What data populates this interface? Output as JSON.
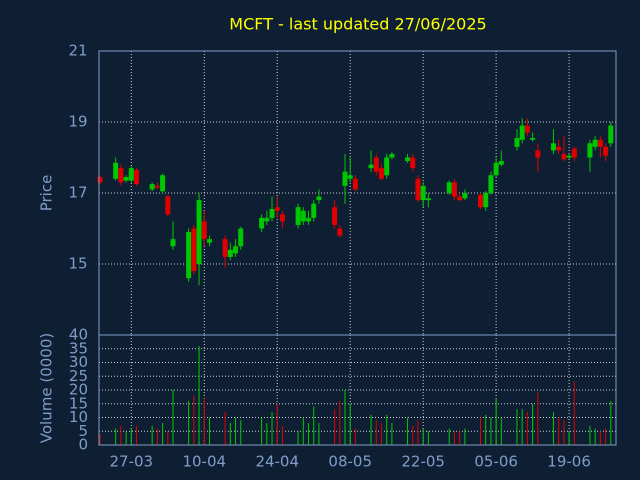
{
  "chart_data": {
    "type": "candlestick",
    "title": "MCFT - last updated 27/06/2025",
    "ylabel": "Price",
    "volume_label": "Volume (0000)",
    "x": [
      "21-03",
      "24-03",
      "25-03",
      "26-03",
      "27-03",
      "28-03",
      "31-03",
      "01-04",
      "02-04",
      "03-04",
      "04-04",
      "07-04",
      "08-04",
      "09-04",
      "10-04",
      "11-04",
      "14-04",
      "15-04",
      "16-04",
      "17-04",
      "21-04",
      "22-04",
      "23-04",
      "24-04",
      "25-04",
      "28-04",
      "29-04",
      "30-04",
      "01-05",
      "02-05",
      "05-05",
      "06-05",
      "07-05",
      "08-05",
      "09-05",
      "12-05",
      "13-05",
      "14-05",
      "15-05",
      "16-05",
      "19-05",
      "20-05",
      "21-05",
      "22-05",
      "23-05",
      "27-05",
      "28-05",
      "29-05",
      "30-05",
      "02-06",
      "03-06",
      "04-06",
      "05-06",
      "06-06",
      "09-06",
      "10-06",
      "11-06",
      "12-06",
      "13-06",
      "16-06",
      "17-06",
      "18-06",
      "19-06",
      "20-06",
      "23-06",
      "24-06",
      "25-06",
      "26-06",
      "27-06"
    ],
    "open": [
      17.45,
      17.4,
      17.7,
      17.35,
      17.35,
      17.65,
      17.1,
      17.2,
      17.05,
      16.9,
      15.5,
      14.6,
      16.0,
      15.0,
      16.2,
      15.6,
      15.7,
      15.2,
      15.3,
      15.5,
      16.0,
      16.2,
      16.3,
      16.6,
      16.4,
      16.1,
      16.2,
      16.2,
      16.3,
      16.8,
      16.6,
      16.0,
      17.2,
      17.4,
      17.4,
      17.7,
      18.0,
      17.7,
      17.5,
      18.0,
      17.9,
      18.0,
      17.4,
      16.8,
      16.8,
      17.0,
      17.3,
      16.9,
      16.85,
      16.95,
      16.6,
      17.0,
      17.5,
      17.8,
      18.3,
      18.5,
      18.9,
      18.5,
      18.2,
      18.2,
      18.3,
      18.1,
      18.0,
      18.25,
      18.0,
      18.3,
      18.5,
      18.3,
      18.4
    ],
    "high": [
      17.5,
      18.0,
      17.8,
      17.5,
      17.75,
      17.7,
      17.3,
      17.3,
      17.55,
      16.95,
      16.2,
      16.0,
      16.1,
      17.0,
      16.5,
      15.8,
      15.8,
      15.6,
      15.7,
      16.05,
      16.4,
      16.5,
      16.9,
      16.9,
      16.5,
      16.7,
      16.6,
      16.5,
      16.8,
      17.1,
      16.8,
      16.1,
      18.1,
      18.0,
      17.5,
      18.2,
      18.1,
      17.8,
      18.1,
      18.15,
      18.1,
      18.1,
      17.5,
      17.3,
      17.0,
      17.35,
      17.4,
      17.0,
      17.1,
      17.0,
      17.05,
      17.6,
      18.0,
      18.2,
      18.8,
      19.1,
      19.1,
      18.7,
      18.4,
      18.8,
      18.5,
      18.6,
      18.1,
      18.3,
      18.5,
      18.6,
      18.6,
      18.4,
      19.0
    ],
    "low": [
      17.25,
      17.35,
      17.2,
      17.3,
      17.3,
      17.2,
      17.05,
      17.1,
      17.0,
      16.35,
      15.4,
      14.5,
      14.7,
      14.4,
      15.5,
      15.5,
      14.9,
      15.1,
      15.2,
      15.4,
      15.9,
      16.1,
      16.2,
      16.3,
      16.0,
      16.0,
      16.1,
      16.1,
      16.2,
      16.7,
      16.0,
      15.75,
      16.7,
      17.3,
      17.05,
      17.6,
      17.5,
      17.35,
      17.4,
      17.95,
      17.85,
      17.6,
      16.75,
      16.6,
      16.6,
      16.95,
      16.8,
      16.75,
      16.8,
      16.55,
      16.5,
      16.95,
      17.45,
      17.75,
      18.2,
      18.4,
      18.6,
      18.45,
      17.6,
      18.1,
      18.1,
      17.9,
      17.95,
      17.9,
      17.6,
      18.2,
      18.0,
      17.9,
      18.3
    ],
    "close": [
      17.3,
      17.85,
      17.3,
      17.45,
      17.7,
      17.25,
      17.25,
      17.15,
      17.5,
      16.4,
      15.7,
      15.9,
      14.8,
      16.8,
      15.7,
      15.7,
      15.2,
      15.4,
      15.5,
      16.0,
      16.3,
      16.3,
      16.55,
      16.5,
      16.2,
      16.6,
      16.5,
      16.3,
      16.7,
      16.9,
      16.1,
      15.8,
      17.6,
      17.5,
      17.1,
      17.8,
      17.6,
      17.4,
      18.0,
      18.1,
      18.0,
      17.7,
      16.8,
      17.2,
      16.85,
      17.3,
      16.9,
      16.8,
      17.0,
      16.6,
      17.0,
      17.5,
      17.85,
      17.9,
      18.55,
      18.9,
      18.7,
      18.55,
      18.0,
      18.4,
      18.2,
      17.95,
      18.05,
      18.0,
      18.4,
      18.5,
      18.3,
      18.05,
      18.9
    ],
    "volume": [
      4,
      6,
      7,
      5,
      6,
      7,
      7,
      6,
      8,
      5,
      20,
      16,
      18,
      36,
      17,
      10,
      12,
      8,
      10,
      9,
      10,
      8,
      12,
      15,
      7,
      5,
      10,
      8,
      14,
      8,
      13,
      16,
      20,
      15,
      6,
      11,
      9,
      8,
      11,
      8,
      10,
      7,
      9,
      6,
      5,
      6,
      5,
      5,
      6,
      10,
      11,
      10,
      17,
      10,
      13,
      13,
      12,
      15,
      19,
      12,
      10,
      9,
      5,
      23,
      7,
      6,
      5,
      6,
      16
    ],
    "xlim": [
      "21-03",
      "28-06"
    ],
    "xticks": [
      "27-03",
      "10-04",
      "24-04",
      "08-05",
      "22-05",
      "05-06",
      "19-06"
    ],
    "ylim": [
      13,
      21
    ],
    "yticks": [
      15,
      17,
      19,
      21
    ],
    "volume_ylim": [
      0,
      40
    ],
    "volume_yticks": [
      0,
      5,
      10,
      15,
      20,
      25,
      30,
      35,
      40
    ],
    "grid": true,
    "up_color": "#00c800",
    "down_color": "#e00000"
  }
}
